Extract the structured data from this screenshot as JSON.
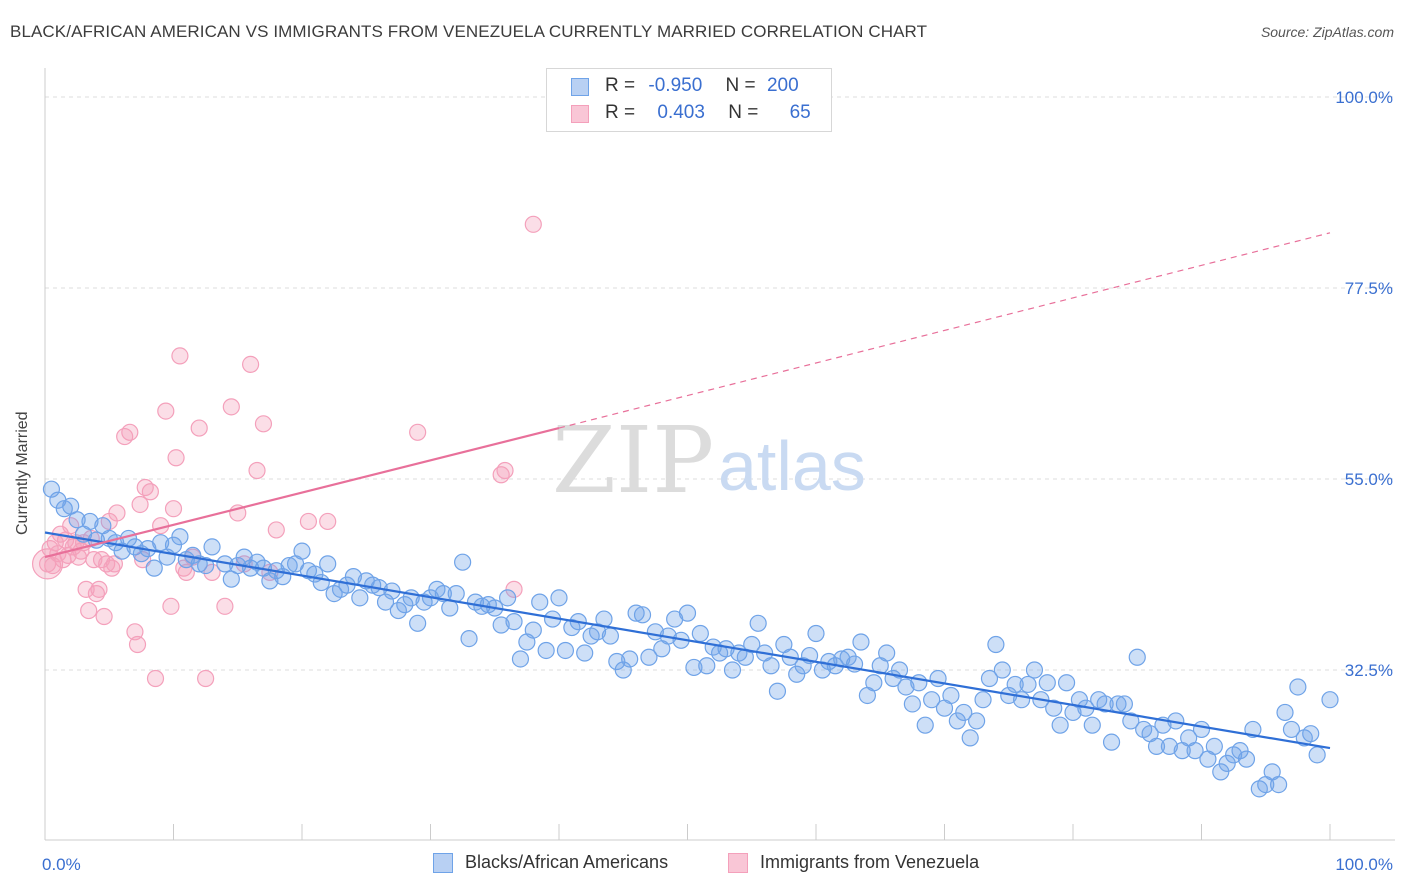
{
  "title": "BLACK/AFRICAN AMERICAN VS IMMIGRANTS FROM VENEZUELA CURRENTLY MARRIED CORRELATION CHART",
  "source": "Source: ZipAtlas.com",
  "watermark": {
    "zip": "ZIP",
    "atlas": "atlas"
  },
  "legend": {
    "rows": [
      {
        "r_label": "R =",
        "r_value": "-0.950",
        "n_label": "N =",
        "n_value": "200"
      },
      {
        "r_label": "R =",
        "r_value": "0.403",
        "n_label": "N =",
        "n_value": "65"
      }
    ]
  },
  "chart_data": {
    "type": "scatter",
    "title": "BLACK/AFRICAN AMERICAN VS IMMIGRANTS FROM VENEZUELA CURRENTLY MARRIED CORRELATION CHART",
    "xlabel": "",
    "ylabel": "Currently Married",
    "xlim": [
      0,
      100
    ],
    "ylim": [
      15,
      104
    ],
    "x_tick_labels": [
      "0.0%",
      "100.0%"
    ],
    "y_ticks": [
      {
        "value": 100.0,
        "label": "100.0%"
      },
      {
        "value": 77.5,
        "label": "77.5%"
      },
      {
        "value": 55.0,
        "label": "55.0%"
      },
      {
        "value": 32.5,
        "label": "32.5%"
      }
    ],
    "grid": true,
    "legend_position": "bottom",
    "colors": {
      "blue": "#6fa3e8",
      "blue_line": "#2f6fd6",
      "pink": "#f4a0bb",
      "pink_line": "#e8709a"
    },
    "series": [
      {
        "name": "Blacks/African Americans",
        "color": "#6fa3e8",
        "trend": {
          "x0": 0,
          "y0": 48.7,
          "x1": 100,
          "y1": 23.3
        },
        "points": [
          [
            0.5,
            53.8
          ],
          [
            1,
            52.5
          ],
          [
            1.5,
            51.5
          ],
          [
            2,
            51.8
          ],
          [
            2.5,
            50.2
          ],
          [
            3,
            48.5
          ],
          [
            3.5,
            50.0
          ],
          [
            4,
            47.8
          ],
          [
            4.5,
            49.5
          ],
          [
            5,
            48.0
          ],
          [
            5.5,
            47.5
          ],
          [
            6,
            46.5
          ],
          [
            6.5,
            48.0
          ],
          [
            7,
            47.0
          ],
          [
            7.5,
            46.2
          ],
          [
            8,
            46.8
          ],
          [
            8.5,
            44.5
          ],
          [
            9,
            47.5
          ],
          [
            9.5,
            45.8
          ],
          [
            10,
            47.2
          ],
          [
            10.5,
            48.2
          ],
          [
            11,
            45.5
          ],
          [
            11.5,
            46.0
          ],
          [
            12,
            45.0
          ],
          [
            12.5,
            44.8
          ],
          [
            13,
            47.0
          ],
          [
            14,
            45.0
          ],
          [
            14.5,
            43.2
          ],
          [
            15,
            44.8
          ],
          [
            15.5,
            45.8
          ],
          [
            16,
            44.5
          ],
          [
            16.5,
            45.2
          ],
          [
            17,
            44.5
          ],
          [
            17.5,
            43.0
          ],
          [
            18,
            44.2
          ],
          [
            18.5,
            43.5
          ],
          [
            19,
            44.8
          ],
          [
            19.5,
            45.0
          ],
          [
            20,
            46.5
          ],
          [
            20.5,
            44.2
          ],
          [
            21,
            43.8
          ],
          [
            21.5,
            42.8
          ],
          [
            22,
            45.0
          ],
          [
            22.5,
            41.5
          ],
          [
            23,
            42.0
          ],
          [
            23.5,
            42.5
          ],
          [
            24,
            43.5
          ],
          [
            24.5,
            41.0
          ],
          [
            25,
            43.0
          ],
          [
            25.5,
            42.5
          ],
          [
            26,
            42.2
          ],
          [
            26.5,
            40.5
          ],
          [
            27,
            41.8
          ],
          [
            27.5,
            39.5
          ],
          [
            28,
            40.2
          ],
          [
            28.5,
            41.0
          ],
          [
            29,
            38.0
          ],
          [
            29.5,
            40.5
          ],
          [
            30,
            41.0
          ],
          [
            30.5,
            42.0
          ],
          [
            31,
            41.5
          ],
          [
            31.5,
            39.8
          ],
          [
            32,
            41.5
          ],
          [
            32.5,
            45.2
          ],
          [
            33,
            36.2
          ],
          [
            33.5,
            40.5
          ],
          [
            34,
            40.0
          ],
          [
            34.5,
            40.2
          ],
          [
            35,
            39.8
          ],
          [
            35.5,
            37.8
          ],
          [
            36,
            41.0
          ],
          [
            36.5,
            38.2
          ],
          [
            37,
            33.8
          ],
          [
            37.5,
            35.8
          ],
          [
            38,
            37.2
          ],
          [
            38.5,
            40.5
          ],
          [
            39,
            34.8
          ],
          [
            39.5,
            38.5
          ],
          [
            40,
            41.0
          ],
          [
            40.5,
            34.8
          ],
          [
            41,
            37.5
          ],
          [
            41.5,
            38.2
          ],
          [
            42,
            34.5
          ],
          [
            42.5,
            36.5
          ],
          [
            43,
            37.0
          ],
          [
            43.5,
            38.5
          ],
          [
            44,
            36.5
          ],
          [
            44.5,
            33.5
          ],
          [
            45,
            32.5
          ],
          [
            45.5,
            33.8
          ],
          [
            46,
            39.2
          ],
          [
            46.5,
            39.0
          ],
          [
            47,
            34.0
          ],
          [
            47.5,
            37.0
          ],
          [
            48,
            35.0
          ],
          [
            48.5,
            36.5
          ],
          [
            49,
            38.5
          ],
          [
            49.5,
            36.0
          ],
          [
            50,
            39.2
          ],
          [
            50.5,
            32.8
          ],
          [
            51,
            36.8
          ],
          [
            51.5,
            33.0
          ],
          [
            52,
            35.2
          ],
          [
            52.5,
            34.5
          ],
          [
            53,
            35.0
          ],
          [
            53.5,
            32.5
          ],
          [
            54,
            34.5
          ],
          [
            54.5,
            34.0
          ],
          [
            55,
            35.5
          ],
          [
            55.5,
            38.0
          ],
          [
            56,
            34.5
          ],
          [
            56.5,
            33.0
          ],
          [
            57,
            30.0
          ],
          [
            57.5,
            35.5
          ],
          [
            58,
            34.0
          ],
          [
            58.5,
            32.0
          ],
          [
            59,
            33.0
          ],
          [
            59.5,
            34.2
          ],
          [
            60,
            36.8
          ],
          [
            60.5,
            32.5
          ],
          [
            61,
            33.5
          ],
          [
            61.5,
            33.0
          ],
          [
            62,
            33.8
          ],
          [
            62.5,
            34.0
          ],
          [
            63,
            33.2
          ],
          [
            63.5,
            35.8
          ],
          [
            64,
            29.5
          ],
          [
            64.5,
            31.0
          ],
          [
            65,
            33.0
          ],
          [
            65.5,
            34.5
          ],
          [
            66,
            31.5
          ],
          [
            66.5,
            32.5
          ],
          [
            67,
            30.5
          ],
          [
            67.5,
            28.5
          ],
          [
            68,
            31.0
          ],
          [
            68.5,
            26.0
          ],
          [
            69,
            29.0
          ],
          [
            69.5,
            31.5
          ],
          [
            70,
            28.0
          ],
          [
            70.5,
            29.5
          ],
          [
            71,
            26.5
          ],
          [
            71.5,
            27.5
          ],
          [
            72,
            24.5
          ],
          [
            72.5,
            26.5
          ],
          [
            73,
            29.0
          ],
          [
            73.5,
            31.5
          ],
          [
            74,
            35.5
          ],
          [
            74.5,
            32.5
          ],
          [
            75,
            29.5
          ],
          [
            75.5,
            30.8
          ],
          [
            76,
            29.0
          ],
          [
            76.5,
            30.8
          ],
          [
            77,
            32.5
          ],
          [
            77.5,
            29.0
          ],
          [
            78,
            31.0
          ],
          [
            78.5,
            28.0
          ],
          [
            79,
            26.0
          ],
          [
            79.5,
            31.0
          ],
          [
            80,
            27.5
          ],
          [
            80.5,
            29.0
          ],
          [
            81,
            28.0
          ],
          [
            81.5,
            26.0
          ],
          [
            82,
            29.0
          ],
          [
            82.5,
            28.5
          ],
          [
            83,
            24.0
          ],
          [
            83.5,
            28.5
          ],
          [
            84,
            28.5
          ],
          [
            84.5,
            26.5
          ],
          [
            85,
            34.0
          ],
          [
            85.5,
            25.5
          ],
          [
            86,
            25.0
          ],
          [
            86.5,
            23.5
          ],
          [
            87,
            26.0
          ],
          [
            87.5,
            23.5
          ],
          [
            88,
            26.5
          ],
          [
            88.5,
            23.0
          ],
          [
            89,
            24.5
          ],
          [
            89.5,
            23.0
          ],
          [
            90,
            25.5
          ],
          [
            90.5,
            22.0
          ],
          [
            91,
            23.5
          ],
          [
            91.5,
            20.5
          ],
          [
            92,
            21.5
          ],
          [
            92.5,
            22.5
          ],
          [
            93,
            23.0
          ],
          [
            93.5,
            22.0
          ],
          [
            94,
            25.5
          ],
          [
            94.5,
            18.5
          ],
          [
            95,
            19.0
          ],
          [
            95.5,
            20.5
          ],
          [
            96,
            19.0
          ],
          [
            96.5,
            27.5
          ],
          [
            97,
            25.5
          ],
          [
            97.5,
            30.5
          ],
          [
            98,
            24.5
          ],
          [
            98.5,
            25.0
          ],
          [
            99,
            22.5
          ],
          [
            100,
            29.0
          ]
        ]
      },
      {
        "name": "Immigrants from Venezuela",
        "color": "#f4a0bb",
        "trend": {
          "x0": 0,
          "y0": 45.8,
          "x1": 40,
          "y1": 61.0,
          "dash_x1": 100,
          "dash_y1": 84.0
        },
        "points": [
          [
            0.2,
            45.0
          ],
          [
            0.4,
            46.8
          ],
          [
            0.6,
            44.8
          ],
          [
            0.8,
            47.5
          ],
          [
            1.0,
            46.2
          ],
          [
            1.2,
            48.5
          ],
          [
            1.4,
            45.5
          ],
          [
            1.6,
            47.8
          ],
          [
            1.8,
            46.0
          ],
          [
            2.0,
            49.5
          ],
          [
            2.2,
            47.0
          ],
          [
            2.4,
            47.5
          ],
          [
            2.6,
            45.8
          ],
          [
            2.8,
            46.5
          ],
          [
            3.0,
            47.5
          ],
          [
            3.2,
            42.0
          ],
          [
            3.4,
            39.5
          ],
          [
            3.6,
            48.0
          ],
          [
            3.8,
            45.5
          ],
          [
            4.0,
            41.5
          ],
          [
            4.2,
            42.0
          ],
          [
            4.4,
            45.5
          ],
          [
            4.6,
            38.8
          ],
          [
            4.8,
            45.0
          ],
          [
            5.0,
            50.0
          ],
          [
            5.2,
            44.5
          ],
          [
            5.4,
            45.0
          ],
          [
            5.6,
            51.0
          ],
          [
            6.2,
            60.0
          ],
          [
            6.6,
            60.5
          ],
          [
            7.0,
            37.0
          ],
          [
            7.2,
            35.5
          ],
          [
            7.4,
            52.0
          ],
          [
            7.6,
            45.5
          ],
          [
            7.8,
            54.0
          ],
          [
            8.2,
            53.5
          ],
          [
            8.6,
            31.5
          ],
          [
            9.0,
            49.5
          ],
          [
            9.4,
            63.0
          ],
          [
            9.8,
            40.0
          ],
          [
            10.0,
            51.5
          ],
          [
            10.2,
            57.5
          ],
          [
            10.5,
            69.5
          ],
          [
            10.8,
            44.5
          ],
          [
            11.0,
            44.0
          ],
          [
            11.5,
            45.8
          ],
          [
            12.0,
            61.0
          ],
          [
            12.5,
            31.5
          ],
          [
            13.0,
            44.0
          ],
          [
            14.0,
            40.0
          ],
          [
            14.5,
            63.5
          ],
          [
            15.0,
            51.0
          ],
          [
            15.5,
            45.0
          ],
          [
            16.0,
            68.5
          ],
          [
            16.5,
            56.0
          ],
          [
            17.0,
            61.5
          ],
          [
            17.5,
            44.0
          ],
          [
            18.0,
            49.0
          ],
          [
            20.5,
            50.0
          ],
          [
            22.0,
            50.0
          ],
          [
            29.0,
            60.5
          ],
          [
            35.5,
            55.5
          ],
          [
            35.8,
            56.0
          ],
          [
            36.5,
            42.0
          ],
          [
            38.0,
            85.0
          ]
        ]
      }
    ]
  }
}
